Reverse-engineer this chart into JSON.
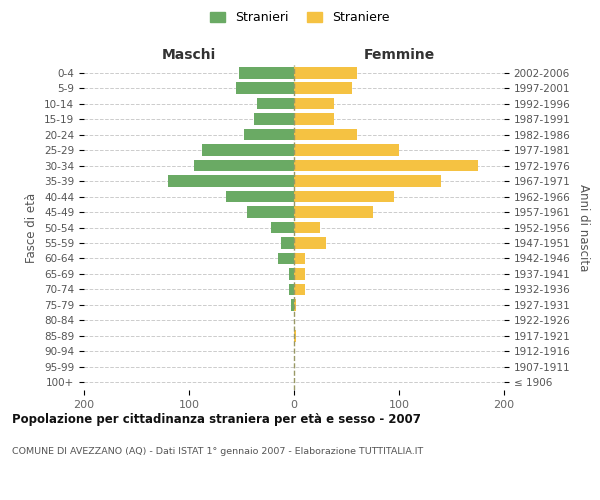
{
  "age_groups": [
    "100+",
    "95-99",
    "90-94",
    "85-89",
    "80-84",
    "75-79",
    "70-74",
    "65-69",
    "60-64",
    "55-59",
    "50-54",
    "45-49",
    "40-44",
    "35-39",
    "30-34",
    "25-29",
    "20-24",
    "15-19",
    "10-14",
    "5-9",
    "0-4"
  ],
  "birth_years": [
    "≤ 1906",
    "1907-1911",
    "1912-1916",
    "1917-1921",
    "1922-1926",
    "1927-1931",
    "1932-1936",
    "1937-1941",
    "1942-1946",
    "1947-1951",
    "1952-1956",
    "1957-1961",
    "1962-1966",
    "1967-1971",
    "1972-1976",
    "1977-1981",
    "1982-1986",
    "1987-1991",
    "1992-1996",
    "1997-2001",
    "2002-2006"
  ],
  "maschi": [
    0,
    0,
    0,
    0,
    0,
    3,
    5,
    5,
    15,
    12,
    22,
    45,
    65,
    120,
    95,
    88,
    48,
    38,
    35,
    55,
    52
  ],
  "femmine": [
    0,
    0,
    0,
    2,
    0,
    2,
    10,
    10,
    10,
    30,
    25,
    75,
    95,
    140,
    175,
    100,
    60,
    38,
    38,
    55,
    60
  ],
  "maschi_color": "#6aaa64",
  "femmine_color": "#f5c242",
  "center_line_color": "#999966",
  "grid_color": "#cccccc",
  "xlim": 200,
  "title": "Popolazione per cittadinanza straniera per età e sesso - 2007",
  "subtitle": "COMUNE DI AVEZZANO (AQ) - Dati ISTAT 1° gennaio 2007 - Elaborazione TUTTITALIA.IT",
  "xlabel_left": "Maschi",
  "xlabel_right": "Femmine",
  "ylabel_left": "Fasce di età",
  "ylabel_right": "Anni di nascita",
  "legend_maschi": "Stranieri",
  "legend_femmine": "Straniere",
  "bg_color": "#ffffff"
}
